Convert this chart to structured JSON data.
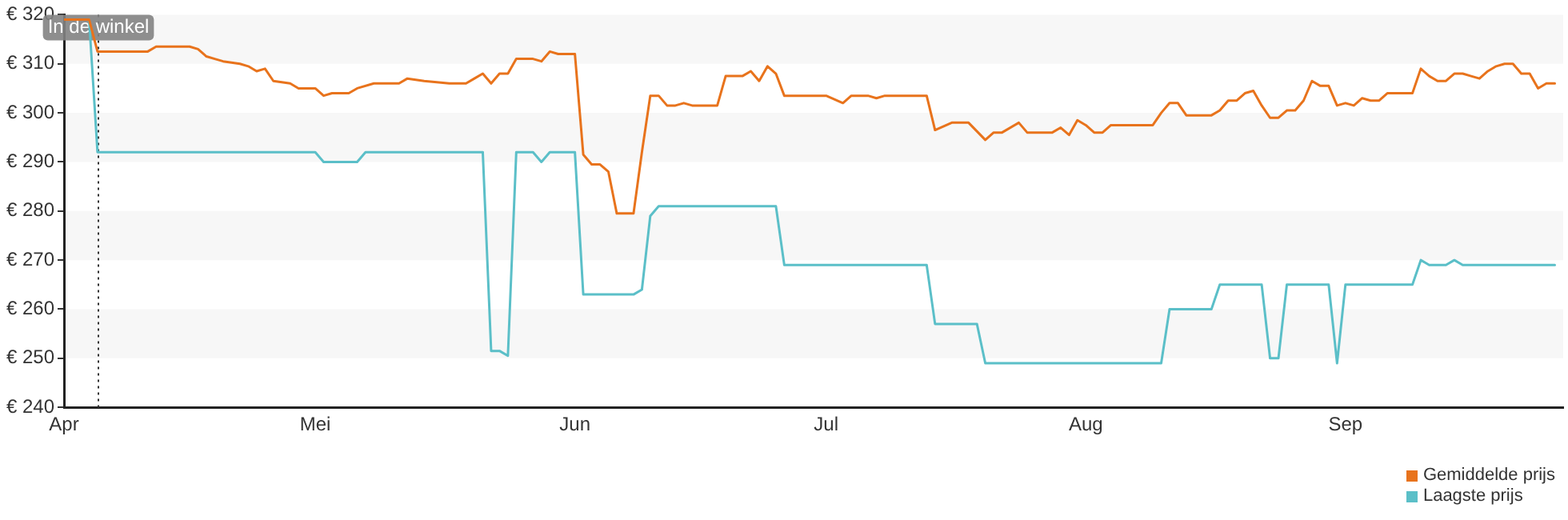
{
  "chart_data": {
    "type": "line",
    "xlim": [
      "--04-01",
      "--09-27"
    ],
    "xticks": [
      {
        "value": "--04-01",
        "label": "Apr"
      },
      {
        "value": "--05-01",
        "label": "Mei"
      },
      {
        "value": "--06-01",
        "label": "Jun"
      },
      {
        "value": "--07-01",
        "label": "Jul"
      },
      {
        "value": "--08-01",
        "label": "Aug"
      },
      {
        "value": "--09-01",
        "label": "Sep"
      }
    ],
    "ylim": [
      240,
      320
    ],
    "yticks": [
      {
        "value": 240,
        "label": "€ 240"
      },
      {
        "value": 250,
        "label": "€ 250"
      },
      {
        "value": 260,
        "label": "€ 260"
      },
      {
        "value": 270,
        "label": "€ 270"
      },
      {
        "value": 280,
        "label": "€ 280"
      },
      {
        "value": 290,
        "label": "€ 290"
      },
      {
        "value": 300,
        "label": "€ 300"
      },
      {
        "value": 310,
        "label": "€ 310"
      },
      {
        "value": 320,
        "label": "€ 320"
      }
    ],
    "bands": [
      {
        "axis": "y",
        "from": 310,
        "to": 320,
        "color": "#f7f7f7"
      },
      {
        "axis": "y",
        "from": 290,
        "to": 300,
        "color": "#f7f7f7"
      },
      {
        "axis": "y",
        "from": 270,
        "to": 280,
        "color": "#f7f7f7"
      },
      {
        "axis": "y",
        "from": 250,
        "to": 260,
        "color": "#f7f7f7"
      }
    ],
    "legend": "bottom right",
    "marker": "none",
    "line_style": "solid",
    "ref_lines": [
      {
        "axis": "x",
        "value": "--04-05",
        "label": "In de winkel",
        "line_style": "dotted",
        "color": "#333333"
      }
    ],
    "series": [
      {
        "name": "Gemiddelde prijs",
        "color": "#e8731c",
        "x": [
          "--04-01",
          "--04-04",
          "--04-05",
          "--04-11",
          "--04-12",
          "--04-16",
          "--04-17",
          "--04-18",
          "--04-19",
          "--04-20",
          "--04-22",
          "--04-23",
          "--04-24",
          "--04-25",
          "--04-26",
          "--04-28",
          "--04-29",
          "--05-01",
          "--05-02",
          "--05-03",
          "--05-05",
          "--05-06",
          "--05-08",
          "--05-11",
          "--05-12",
          "--05-14",
          "--05-17",
          "--05-19",
          "--05-20",
          "--05-21",
          "--05-22",
          "--05-23",
          "--05-24",
          "--05-25",
          "--05-26",
          "--05-27",
          "--05-28",
          "--05-29",
          "--05-30",
          "--06-01",
          "--06-02",
          "--06-03",
          "--06-04",
          "--06-05",
          "--06-06",
          "--06-08",
          "--06-09",
          "--06-10",
          "--06-11",
          "--06-12",
          "--06-13",
          "--06-14",
          "--06-15",
          "--06-18",
          "--06-19",
          "--06-21",
          "--06-22",
          "--06-23",
          "--06-24",
          "--06-25",
          "--06-26",
          "--07-01",
          "--07-03",
          "--07-04",
          "--07-06",
          "--07-07",
          "--07-08",
          "--07-13",
          "--07-14",
          "--07-16",
          "--07-18",
          "--07-20",
          "--07-21",
          "--07-22",
          "--07-24",
          "--07-25",
          "--07-26",
          "--07-28",
          "--07-29",
          "--07-30",
          "--07-31",
          "--08-01",
          "--08-02",
          "--08-03",
          "--08-04",
          "--08-05",
          "--08-09",
          "--08-10",
          "--08-11",
          "--08-12",
          "--08-13",
          "--08-16",
          "--08-17",
          "--08-18",
          "--08-19",
          "--08-20",
          "--08-21",
          "--08-22",
          "--08-23",
          "--08-24",
          "--08-25",
          "--08-26",
          "--08-27",
          "--08-28",
          "--08-29",
          "--08-30",
          "--08-31",
          "--09-01",
          "--09-02",
          "--09-03",
          "--09-04",
          "--09-05",
          "--09-06",
          "--09-09",
          "--09-10",
          "--09-11",
          "--09-12",
          "--09-13",
          "--09-14",
          "--09-15",
          "--09-16",
          "--09-17",
          "--09-18",
          "--09-19",
          "--09-20",
          "--09-21",
          "--09-22",
          "--09-23",
          "--09-24",
          "--09-25",
          "--09-26"
        ],
        "values": [
          319,
          319,
          312.5,
          312.5,
          313.5,
          313.5,
          313,
          311.5,
          311,
          310.5,
          310,
          309.5,
          308.5,
          309,
          306.5,
          306,
          305,
          305,
          303.5,
          304,
          304,
          305,
          306,
          306,
          307,
          306.5,
          306,
          306,
          307,
          308,
          306,
          308,
          308,
          311,
          311,
          311,
          310.5,
          312.5,
          312,
          312,
          291.5,
          289.5,
          289.5,
          288,
          279.5,
          279.5,
          292,
          303.5,
          303.5,
          301.5,
          301.5,
          302,
          301.5,
          301.5,
          307.5,
          307.5,
          308.5,
          306.5,
          309.5,
          308,
          303.5,
          303.5,
          302,
          303.5,
          303.5,
          303,
          303.5,
          303.5,
          296.5,
          298,
          298,
          294.5,
          296,
          296,
          298,
          296,
          296,
          296,
          297,
          295.5,
          298.5,
          297.5,
          296,
          296,
          297.5,
          297.5,
          297.5,
          300,
          302,
          302,
          299.5,
          299.5,
          300.5,
          302.5,
          302.5,
          304,
          304.5,
          301.5,
          299,
          299,
          300.5,
          300.5,
          302.5,
          306.5,
          305.5,
          305.5,
          301.5,
          302,
          301.5,
          303,
          302.5,
          302.5,
          304,
          304,
          309,
          307.5,
          306.5,
          306.5,
          308,
          308,
          307.5,
          307,
          308.5,
          309.5,
          310,
          310,
          308,
          308,
          305,
          306,
          306
        ]
      },
      {
        "name": "Laagste prijs",
        "color": "#5bbfc8",
        "x": [
          "--04-01",
          "--04-04",
          "--04-05",
          "--05-01",
          "--05-02",
          "--05-06",
          "--05-07",
          "--05-21",
          "--05-22",
          "--05-23",
          "--05-24",
          "--05-25",
          "--05-27",
          "--05-28",
          "--05-29",
          "--06-01",
          "--06-02",
          "--06-08",
          "--06-09",
          "--06-10",
          "--06-11",
          "--06-25",
          "--06-26",
          "--07-13",
          "--07-14",
          "--07-19",
          "--07-20",
          "--08-10",
          "--08-11",
          "--08-16",
          "--08-17",
          "--08-22",
          "--08-23",
          "--08-24",
          "--08-25",
          "--08-30",
          "--08-31",
          "--09-01",
          "--09-09",
          "--09-10",
          "--09-11",
          "--09-13",
          "--09-14",
          "--09-15",
          "--09-26"
        ],
        "values": [
          319,
          319,
          292,
          292,
          290,
          290,
          292,
          292,
          251.5,
          251.5,
          250.5,
          292,
          292,
          290,
          292,
          292,
          263,
          263,
          264,
          279,
          281,
          281,
          269,
          269,
          257,
          257,
          249,
          249,
          260,
          260,
          265,
          265,
          250,
          250,
          265,
          265,
          249,
          265,
          265,
          270,
          269,
          269,
          270,
          269,
          269
        ]
      }
    ]
  }
}
